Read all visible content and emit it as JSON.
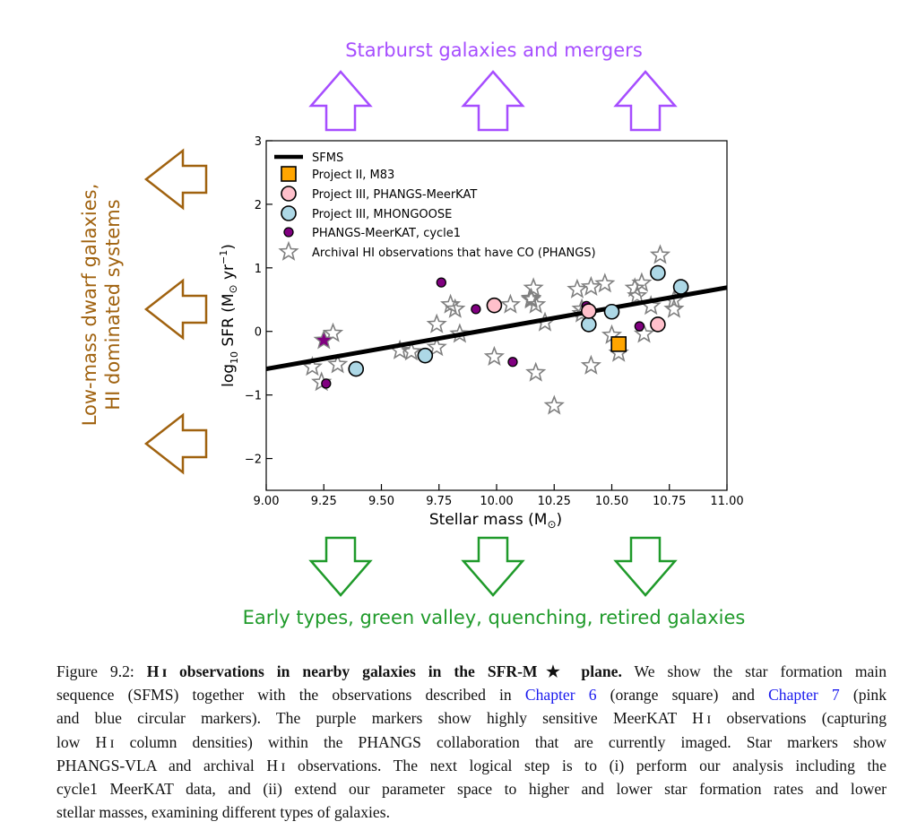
{
  "annotations": {
    "top": "Starburst galaxies and mergers",
    "left_line1": "Low-mass dwarf galaxies,",
    "left_line2": "HI dominated systems",
    "bottom": "Early types, green valley, quenching, retired galaxies",
    "colors": {
      "top": "#a64dff",
      "left": "#a0620f",
      "bottom": "#1f9a2a"
    }
  },
  "chart_data": {
    "type": "scatter",
    "xlabel": "Stellar mass (M⊙)",
    "xlabel_parts": {
      "main": "Stellar mass (M",
      "sun": "⊙",
      "close": ")"
    },
    "ylabel": "log10 SFR (M⊙ yr−1)",
    "ylabel_parts": {
      "log": "log",
      "sub": "10",
      "main": " SFR (M",
      "sun": "⊙",
      "yr": " yr",
      "sup": "−1",
      "close": ")"
    },
    "xlim": [
      9.0,
      11.0
    ],
    "ylim": [
      -2.5,
      3.0
    ],
    "xticks": [
      "9.00",
      "9.25",
      "9.50",
      "9.75",
      "10.00",
      "10.25",
      "10.50",
      "10.75",
      "11.00"
    ],
    "yticks": [
      "−2",
      "−1",
      "0",
      "1",
      "2",
      "3"
    ],
    "legend_position": "top-left",
    "sfms_line": {
      "name": "SFMS",
      "x": [
        9.0,
        11.0
      ],
      "y": [
        -0.59,
        0.69
      ],
      "color": "#000000"
    },
    "series": [
      {
        "name": "Project II, M83",
        "marker": "square",
        "color": "#ffa500",
        "points": [
          [
            10.53,
            -0.2
          ]
        ]
      },
      {
        "name": "Project III, PHANGS-MeerKAT",
        "marker": "circle",
        "color": "#ffc0cb",
        "points": [
          [
            9.99,
            0.41
          ],
          [
            10.4,
            0.32
          ],
          [
            10.7,
            0.11
          ]
        ]
      },
      {
        "name": "Project III, MHONGOOSE",
        "marker": "circle",
        "color": "#add8e6",
        "points": [
          [
            9.39,
            -0.59
          ],
          [
            9.69,
            -0.38
          ],
          [
            10.4,
            0.11
          ],
          [
            10.5,
            0.31
          ],
          [
            10.7,
            0.92
          ],
          [
            10.8,
            0.7
          ]
        ]
      },
      {
        "name": "PHANGS-MeerKAT, cycle1",
        "marker": "small-circle",
        "color": "#800080",
        "points": [
          [
            9.76,
            0.77
          ],
          [
            9.91,
            0.35
          ],
          [
            10.07,
            -0.48
          ],
          [
            9.26,
            -0.82
          ],
          [
            9.68,
            -0.38
          ],
          [
            10.62,
            0.08
          ],
          [
            10.39,
            0.4
          ]
        ]
      },
      {
        "name": "Archival HI observations that have CO (PHANGS)",
        "marker": "star",
        "color": "#808080",
        "points": [
          [
            9.2,
            -0.56
          ],
          [
            9.24,
            -0.8
          ],
          [
            9.29,
            -0.03
          ],
          [
            9.31,
            -0.52
          ],
          [
            9.25,
            -0.14
          ],
          [
            9.58,
            -0.3
          ],
          [
            9.63,
            -0.32
          ],
          [
            9.74,
            0.11
          ],
          [
            9.74,
            -0.25
          ],
          [
            9.8,
            0.42
          ],
          [
            9.82,
            0.35
          ],
          [
            9.84,
            -0.04
          ],
          [
            9.99,
            -0.4
          ],
          [
            10.06,
            0.42
          ],
          [
            10.16,
            0.68
          ],
          [
            10.15,
            0.52
          ],
          [
            10.17,
            0.42
          ],
          [
            10.17,
            -0.65
          ],
          [
            10.21,
            0.14
          ],
          [
            10.25,
            -1.17
          ],
          [
            10.35,
            0.66
          ],
          [
            10.37,
            0.35
          ],
          [
            10.41,
            -0.54
          ],
          [
            10.41,
            0.7
          ],
          [
            10.47,
            0.75
          ],
          [
            10.5,
            -0.06
          ],
          [
            10.53,
            -0.34
          ],
          [
            10.6,
            0.68
          ],
          [
            10.61,
            0.56
          ],
          [
            10.63,
            0.76
          ],
          [
            10.64,
            -0.04
          ],
          [
            10.67,
            0.4
          ],
          [
            10.71,
            1.2
          ],
          [
            10.77,
            0.49
          ],
          [
            10.77,
            0.35
          ],
          [
            10.37,
            0.28
          ],
          [
            10.15,
            0.5
          ]
        ]
      }
    ],
    "highlight_points": [
      {
        "series": "PHANGS-MeerKAT, cycle1",
        "marker": "star",
        "point": [
          9.25,
          -0.14
        ]
      }
    ]
  },
  "caption": {
    "lines": [
      [
        {
          "t": "Figure 9.2: "
        },
        {
          "t": "H ɪ observations in nearby galaxies in the SFR-M★ plane.",
          "s": "b"
        },
        {
          "t": " We show the star formation main"
        }
      ],
      [
        {
          "t": "sequence (SFMS) together with the observations described in "
        },
        {
          "t": "Chapter 6",
          "s": "lnk"
        },
        {
          "t": " (orange square) and "
        },
        {
          "t": "Chapter 7",
          "s": "lnk"
        },
        {
          "t": " (pink"
        }
      ],
      [
        {
          "t": "and blue circular markers). The purple markers show highly sensitive MeerKAT H ɪ observations (capturing"
        }
      ],
      [
        {
          "t": "low H ɪ column densities) within the PHANGS collaboration that are currently imaged. Star markers show"
        }
      ],
      [
        {
          "t": "PHANGS-VLA and archival H ɪ observations. The next logical step is to (i) perform our analysis including the"
        }
      ],
      [
        {
          "t": "cycle1 MeerKAT data, and (ii) extend our parameter space to higher and lower star formation rates and lower"
        }
      ],
      [
        {
          "t": "stellar masses, examining different types of galaxies."
        }
      ]
    ]
  }
}
